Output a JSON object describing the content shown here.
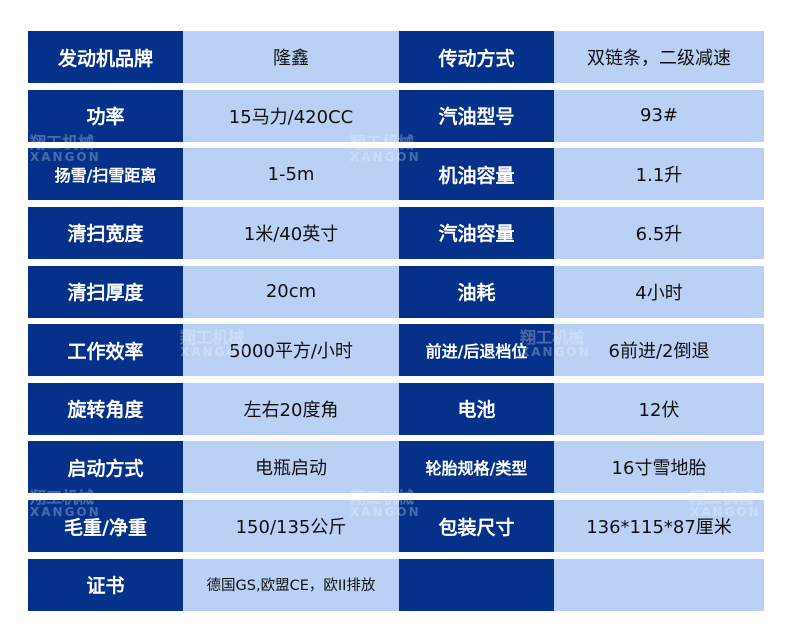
{
  "colors": {
    "header_bg": "#06318a",
    "value_bg": "#bad0f5",
    "header_text": "#ffffff",
    "value_text": "#111111"
  },
  "watermark": {
    "text": "翔工机械",
    "sub": "XANGON"
  },
  "rows": [
    {
      "k1": "发动机品牌",
      "v1": "隆鑫",
      "k2": "传动方式",
      "v2": "双链条，二级减速"
    },
    {
      "k1": "功率",
      "v1": "15马力/420CC",
      "k2": "汽油型号",
      "v2": "93#"
    },
    {
      "k1": "扬雪/扫雪距离",
      "v1": "1-5m",
      "k2": "机油容量",
      "v2": "1.1升"
    },
    {
      "k1": "清扫宽度",
      "v1": "1米/40英寸",
      "k2": "汽油容量",
      "v2": "6.5升"
    },
    {
      "k1": "清扫厚度",
      "v1": "20cm",
      "k2": "油耗",
      "v2": "4小时"
    },
    {
      "k1": "工作效率",
      "v1": "5000平方/小时",
      "k2": "前进/后退档位",
      "v2": "6前进/2倒退"
    },
    {
      "k1": "旋转角度",
      "v1": "左右20度角",
      "k2": "电池",
      "v2": "12伏"
    },
    {
      "k1": "启动方式",
      "v1": "电瓶启动",
      "k2": "轮胎规格/类型",
      "v2": "16寸雪地胎"
    },
    {
      "k1": "毛重/净重",
      "v1": "150/135公斤",
      "k2": "包装尺寸",
      "v2": "136*115*87厘米"
    },
    {
      "k1": "证书",
      "v1": "德国GS,欧盟CE，欧II排放",
      "k2": "",
      "v2": ""
    }
  ]
}
